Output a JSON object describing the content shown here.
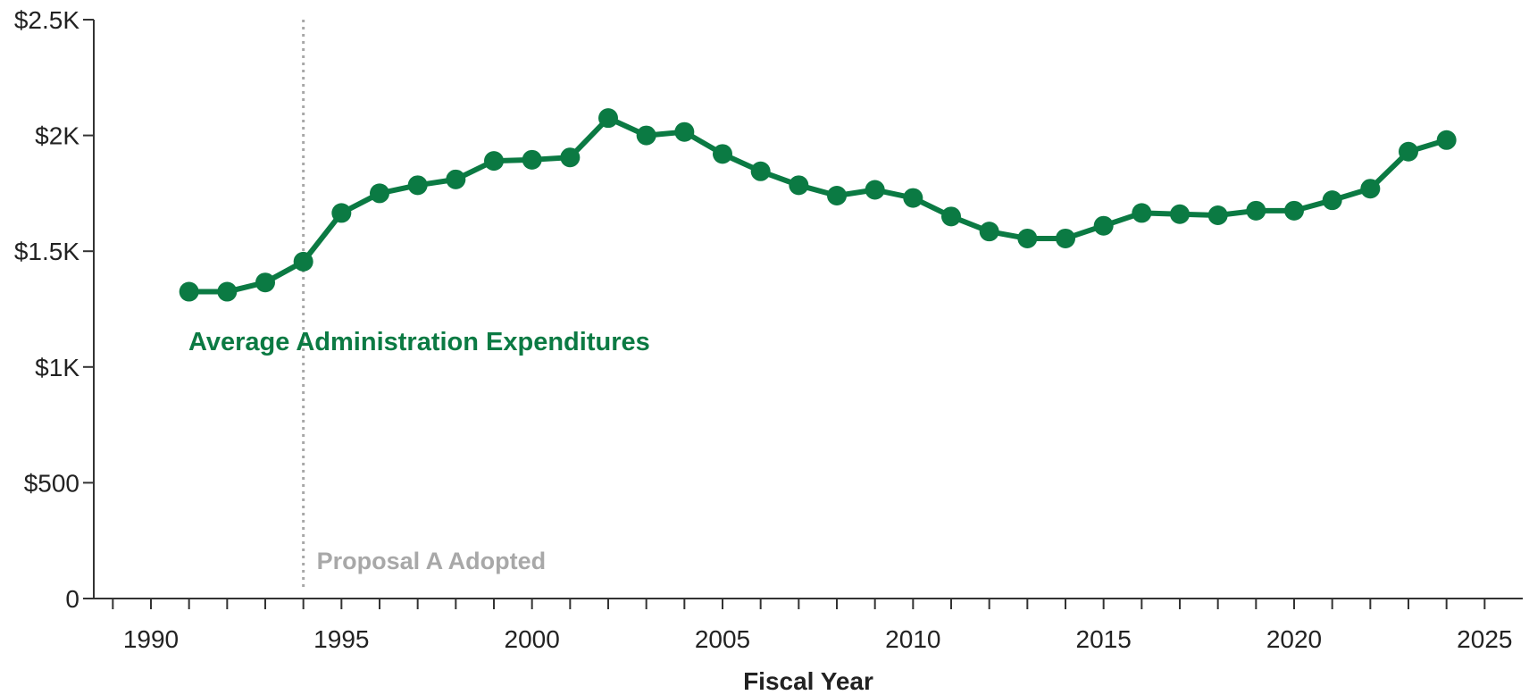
{
  "chart_data": {
    "type": "line",
    "title": "",
    "xlabel": "Fiscal Year",
    "ylabel": "",
    "xlim": [
      1988.5,
      2026
    ],
    "ylim": [
      0,
      2500
    ],
    "x_ticks": [
      1990,
      1995,
      2000,
      2005,
      2010,
      2015,
      2020,
      2025
    ],
    "y_ticks": [
      {
        "value": 0,
        "label": "0"
      },
      {
        "value": 500,
        "label": "$500"
      },
      {
        "value": 1000,
        "label": "$1K"
      },
      {
        "value": 1500,
        "label": "$1.5K"
      },
      {
        "value": 2000,
        "label": "$2K"
      },
      {
        "value": 2500,
        "label": "$2.5K"
      }
    ],
    "grid": false,
    "series": [
      {
        "name": "Average Administration Expenditures",
        "color": "#0b7a43",
        "x": [
          1991,
          1992,
          1993,
          1994,
          1995,
          1996,
          1997,
          1998,
          1999,
          2000,
          2001,
          2002,
          2003,
          2004,
          2005,
          2006,
          2007,
          2008,
          2009,
          2010,
          2011,
          2012,
          2013,
          2014,
          2015,
          2016,
          2017,
          2018,
          2019,
          2020,
          2021,
          2022,
          2023,
          2024
        ],
        "values": [
          1325,
          1325,
          1365,
          1455,
          1665,
          1750,
          1785,
          1810,
          1890,
          1895,
          1905,
          2075,
          2000,
          2015,
          1920,
          1845,
          1785,
          1740,
          1765,
          1730,
          1650,
          1585,
          1555,
          1555,
          1610,
          1665,
          1660,
          1655,
          1675,
          1675,
          1720,
          1770,
          1930,
          1980
        ]
      }
    ],
    "annotations": [
      {
        "x": 1994,
        "text": "Proposal A Adopted",
        "color": "#a8a8a8",
        "style": "dotted-vertical-line"
      }
    ]
  }
}
